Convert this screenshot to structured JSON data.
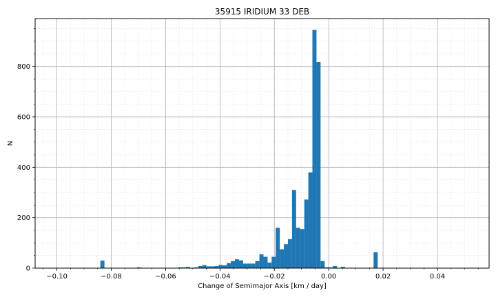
{
  "chart_data": {
    "type": "bar",
    "title": "35915 IRIDIUM 33 DEB",
    "xlabel": "Change of Semimajor Axis [km / day]",
    "ylabel": "N",
    "xlim": [
      -0.108,
      0.059
    ],
    "ylim": [
      0,
      990
    ],
    "grid": true,
    "bar_color": "#1f77b4",
    "x_ticks": [
      -0.1,
      -0.08,
      -0.06,
      -0.04,
      -0.02,
      0.0,
      0.02,
      0.04
    ],
    "x_tick_labels": [
      "−0.10",
      "−0.08",
      "−0.06",
      "−0.04",
      "−0.02",
      "0.00",
      "0.02",
      "0.04"
    ],
    "y_ticks": [
      0,
      200,
      400,
      600,
      800
    ],
    "y_tick_labels": [
      "0",
      "200",
      "400",
      "600",
      "800"
    ],
    "bin_width": 0.0015,
    "bins": [
      {
        "x": -0.084,
        "count": 30
      },
      {
        "x": -0.0705,
        "count": 3
      },
      {
        "x": -0.0555,
        "count": 3
      },
      {
        "x": -0.054,
        "count": 3
      },
      {
        "x": -0.0525,
        "count": 5
      },
      {
        "x": -0.0495,
        "count": 3
      },
      {
        "x": -0.048,
        "count": 8
      },
      {
        "x": -0.0465,
        "count": 12
      },
      {
        "x": -0.045,
        "count": 7
      },
      {
        "x": -0.0435,
        "count": 7
      },
      {
        "x": -0.042,
        "count": 8
      },
      {
        "x": -0.0405,
        "count": 13
      },
      {
        "x": -0.039,
        "count": 11
      },
      {
        "x": -0.0375,
        "count": 20
      },
      {
        "x": -0.036,
        "count": 28
      },
      {
        "x": -0.0345,
        "count": 35
      },
      {
        "x": -0.033,
        "count": 31
      },
      {
        "x": -0.0315,
        "count": 18
      },
      {
        "x": -0.03,
        "count": 18
      },
      {
        "x": -0.0285,
        "count": 18
      },
      {
        "x": -0.027,
        "count": 28
      },
      {
        "x": -0.0255,
        "count": 55
      },
      {
        "x": -0.024,
        "count": 45
      },
      {
        "x": -0.0225,
        "count": 22
      },
      {
        "x": -0.021,
        "count": 45
      },
      {
        "x": -0.0195,
        "count": 160
      },
      {
        "x": -0.018,
        "count": 75
      },
      {
        "x": -0.0165,
        "count": 95
      },
      {
        "x": -0.015,
        "count": 115
      },
      {
        "x": -0.0135,
        "count": 310
      },
      {
        "x": -0.012,
        "count": 160
      },
      {
        "x": -0.0105,
        "count": 155
      },
      {
        "x": -0.009,
        "count": 272
      },
      {
        "x": -0.0075,
        "count": 380
      },
      {
        "x": -0.006,
        "count": 945
      },
      {
        "x": -0.0045,
        "count": 818
      },
      {
        "x": -0.003,
        "count": 28
      },
      {
        "x": -0.0015,
        "count": 3
      },
      {
        "x": 0.0,
        "count": 3
      },
      {
        "x": 0.0015,
        "count": 8
      },
      {
        "x": 0.0045,
        "count": 5
      },
      {
        "x": 0.0165,
        "count": 63
      }
    ]
  }
}
